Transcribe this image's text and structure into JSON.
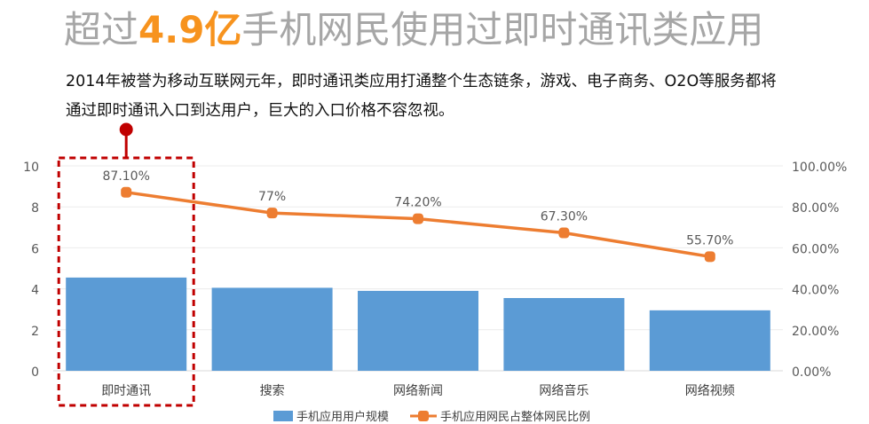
{
  "headline": {
    "prefix": "超过",
    "highlight": "4.9亿",
    "suffix": "手机网民使用过即时通讯类应用"
  },
  "intro": {
    "line1": "2014年被誉为移动互联网元年，即时通讯类应用打通整个生态链条，游戏、电子商务、O2O等服务都将",
    "line2": "通过即时通讯入口到达用户，巨大的入口价格不容忽视。"
  },
  "colors": {
    "bar": "#5b9bd5",
    "line": "#ed7d31",
    "highlight_box": "#c00000",
    "headline_gray": "#a6a6a6",
    "headline_accent": "#f7931e"
  },
  "chart_data": {
    "type": "bar",
    "categories": [
      "即时通讯",
      "搜索",
      "网络新闻",
      "网络音乐",
      "网络视频"
    ],
    "series": [
      {
        "name": "手机应用用户规模",
        "type": "bar",
        "axis": "left",
        "values": [
          4.55,
          4.05,
          3.9,
          3.55,
          2.95
        ]
      },
      {
        "name": "手机应用网民占整体网民比例",
        "type": "line",
        "axis": "right",
        "values": [
          87.1,
          77.0,
          74.2,
          67.3,
          55.7
        ],
        "labels": [
          "87.10%",
          "77%",
          "74.20%",
          "67.30%",
          "55.70%"
        ]
      }
    ],
    "y_left": {
      "ylim": [
        0,
        10
      ],
      "ticks": [
        "0",
        "2",
        "4",
        "6",
        "8",
        "10"
      ]
    },
    "y_right": {
      "ylim": [
        0,
        100
      ],
      "ticks": [
        "0.00%",
        "20.00%",
        "40.00%",
        "60.00%",
        "80.00%",
        "100.00%"
      ]
    },
    "highlight_category": "即时通讯",
    "legend_position": "bottom"
  }
}
